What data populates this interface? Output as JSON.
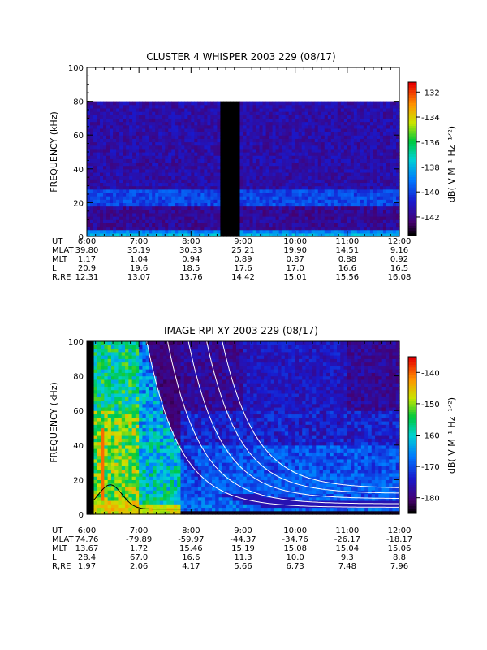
{
  "chart_data": [
    {
      "type": "heatmap",
      "title": "CLUSTER 4 WHISPER 2003 229 (08/17)",
      "ylabel": "FREQUENCY (kHz)",
      "ylim": [
        0,
        100
      ],
      "yticks": [
        "0",
        "20",
        "40",
        "60",
        "80",
        "100"
      ],
      "data_ceiling_khz": 80,
      "colorbar": {
        "label": "dB( V M⁻¹ Hz⁻¹ᐟ²)",
        "ticks": [
          "-132",
          "-134",
          "-136",
          "-138",
          "-140",
          "-142"
        ],
        "range": [
          -143.5,
          -131.2
        ],
        "colormap": "rainbow"
      },
      "data_gap_utc": [
        "08:33",
        "08:55"
      ],
      "bands": [
        {
          "f_khz": [
            0,
            5
          ],
          "level_db": -139
        },
        {
          "f_khz": [
            18,
            29
          ],
          "level_db": -140
        },
        {
          "f_khz": [
            29,
            80
          ],
          "level_db": -141.5
        }
      ],
      "ephemeris": {
        "row_labels": [
          "UT",
          "MLAT",
          "MLT",
          "L",
          "R,RE"
        ],
        "columns": [
          {
            "UT": "6:00",
            "MLAT": "39.80",
            "MLT": "1.17",
            "L": "20.9",
            "R,RE": "12.31"
          },
          {
            "UT": "7:00",
            "MLAT": "35.19",
            "MLT": "1.04",
            "L": "19.6",
            "R,RE": "13.07"
          },
          {
            "UT": "8:00",
            "MLAT": "30.33",
            "MLT": "0.94",
            "L": "18.5",
            "R,RE": "13.76"
          },
          {
            "UT": "9:00",
            "MLAT": "25.21",
            "MLT": "0.89",
            "L": "17.6",
            "R,RE": "14.42"
          },
          {
            "UT": "10:00",
            "MLAT": "19.90",
            "MLT": "0.87",
            "L": "17.0",
            "R,RE": "15.01"
          },
          {
            "UT": "11:00",
            "MLAT": "14.51",
            "MLT": "0.88",
            "L": "16.6",
            "R,RE": "15.56"
          },
          {
            "UT": "12:00",
            "MLAT": "9.16",
            "MLT": "0.92",
            "L": "16.5",
            "R,RE": "16.08"
          }
        ]
      }
    },
    {
      "type": "heatmap",
      "title": "IMAGE RPI XY 2003 229 (08/17)",
      "ylabel": "FREQUENCY (kHz)",
      "ylim": [
        0,
        100
      ],
      "yticks": [
        "0",
        "20",
        "40",
        "60",
        "80",
        "100"
      ],
      "colorbar": {
        "label": "dB( V M⁻¹ Hz⁻¹ᐟ²)",
        "ticks": [
          "-140",
          "-150",
          "-160",
          "-170",
          "-180"
        ],
        "range": [
          -185,
          -135
        ],
        "colormap": "rainbow"
      },
      "ephemeris": {
        "row_labels": [
          "UT",
          "MLAT",
          "MLT",
          "L",
          "R,RE"
        ],
        "columns": [
          {
            "UT": "6:00",
            "MLAT": "74.76",
            "MLT": "13.67",
            "L": "28.4",
            "R,RE": "1.97"
          },
          {
            "UT": "7:00",
            "MLAT": "-79.89",
            "MLT": "1.72",
            "L": "67.0",
            "R,RE": "2.06"
          },
          {
            "UT": "8:00",
            "MLAT": "-59.97",
            "MLT": "15.46",
            "L": "16.6",
            "R,RE": "4.17"
          },
          {
            "UT": "9:00",
            "MLAT": "-44.37",
            "MLT": "15.19",
            "L": "11.3",
            "R,RE": "5.66"
          },
          {
            "UT": "10:00",
            "MLAT": "-34.76",
            "MLT": "15.08",
            "L": "10.0",
            "R,RE": "6.73"
          },
          {
            "UT": "11:00",
            "MLAT": "-26.17",
            "MLT": "15.04",
            "L": "9.3",
            "R,RE": "7.48"
          },
          {
            "UT": "12:00",
            "MLAT": "-18.17",
            "MLT": "15.06",
            "L": "8.8",
            "R,RE": "7.96"
          }
        ]
      },
      "overlay_curves_white": [
        {
          "t0_hours": 7.15,
          "f_at_t0_khz": 100,
          "floor_khz": 4
        },
        {
          "t0_hours": 7.55,
          "f_at_t0_khz": 100,
          "floor_khz": 6
        },
        {
          "t0_hours": 7.95,
          "f_at_t0_khz": 100,
          "floor_khz": 9
        },
        {
          "t0_hours": 8.3,
          "f_at_t0_khz": 100,
          "floor_khz": 12
        },
        {
          "t0_hours": 8.6,
          "f_at_t0_khz": 100,
          "floor_khz": 15
        }
      ],
      "overlay_curve_black": {
        "peak_time_hours": 6.45,
        "peak_khz": 17
      }
    }
  ]
}
